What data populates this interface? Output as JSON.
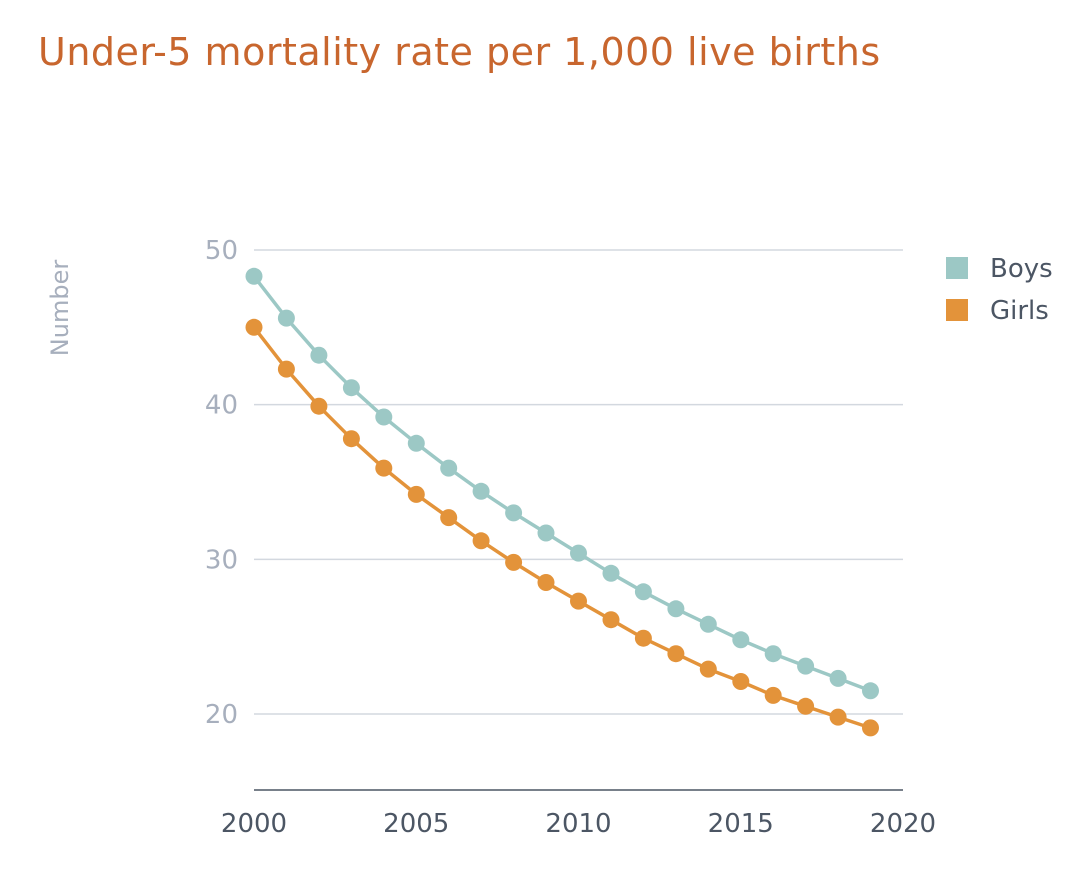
{
  "chart_data": {
    "type": "line",
    "title": "Under-5 mortality rate per 1,000 live births",
    "ylabel": "Number",
    "xlabel": "",
    "xlim": [
      2000,
      2020
    ],
    "ylim": [
      15,
      50
    ],
    "x_ticks": [
      2000,
      2005,
      2010,
      2015,
      2020
    ],
    "y_ticks": [
      20,
      30,
      40,
      50
    ],
    "grid": true,
    "legend_position": "top-right",
    "x": [
      2000,
      2001,
      2002,
      2003,
      2004,
      2005,
      2006,
      2007,
      2008,
      2009,
      2010,
      2011,
      2012,
      2013,
      2014,
      2015,
      2016,
      2017,
      2018,
      2019
    ],
    "series": [
      {
        "name": "Boys",
        "color": "#9cc8c5",
        "values": [
          48.3,
          45.6,
          43.2,
          41.1,
          39.2,
          37.5,
          35.9,
          34.4,
          33.0,
          31.7,
          30.4,
          29.1,
          27.9,
          26.8,
          25.8,
          24.8,
          23.9,
          23.1,
          22.3,
          21.5
        ]
      },
      {
        "name": "Girls",
        "color": "#e3933a",
        "values": [
          45.0,
          42.3,
          39.9,
          37.8,
          35.9,
          34.2,
          32.7,
          31.2,
          29.8,
          28.5,
          27.3,
          26.1,
          24.9,
          23.9,
          22.9,
          22.1,
          21.2,
          20.5,
          19.8,
          19.1
        ]
      }
    ]
  }
}
